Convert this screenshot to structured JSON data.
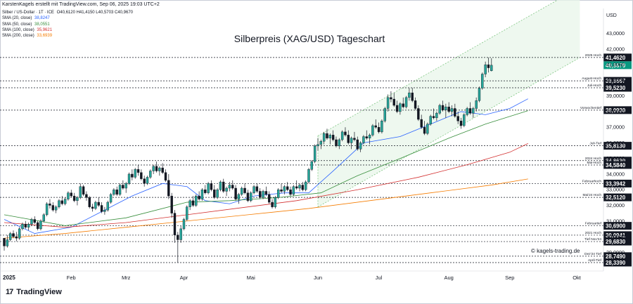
{
  "credit": "KarstenKagels erstellt mit TradingView.com, Sep 06, 2025 19:03 UTC+2",
  "legend": {
    "instrument": "Silber / US-Dollar · 1T · ICE",
    "ohlc": "O40,6120 H41,4150 L40,5703 C40,9670",
    "sma": [
      {
        "label": "SMA (20, close)",
        "value": "38,8247",
        "color": "#2962ff"
      },
      {
        "label": "SMA (50, close)",
        "value": "38,0551",
        "color": "#388e3c"
      },
      {
        "label": "SMA (100, close)",
        "value": "35,9621",
        "color": "#d32f2f"
      },
      {
        "label": "SMA (200, close)",
        "value": "33,6939",
        "color": "#f57c00"
      }
    ]
  },
  "year_label": "2025",
  "brand": "TradingView",
  "watermark": "© kagels-trading.de",
  "chart_data": {
    "type": "candlestick",
    "title": "Silberpreis (XAG/USD) Tageschart",
    "currency": "USD",
    "ylim": [
      27.8,
      44.6
    ],
    "y_ticks": [
      29,
      30,
      31,
      32,
      33,
      34,
      35,
      36,
      37,
      38,
      39,
      40,
      41,
      42,
      43
    ],
    "y_tick_labels": [
      "29,0000",
      "30,0000",
      "31,0000",
      "32,0000",
      "33,0000",
      "34,0000",
      "35,0000",
      "36,0000",
      "37,0000",
      "38,0000",
      "39,0000",
      "40,0000",
      "41,0000",
      "42,0000",
      "43,0000"
    ],
    "x_labels": [
      "Feb",
      "Mrz",
      "Apr",
      "Mai",
      "Jun",
      "Jul",
      "Aug",
      "Sep",
      "Okt"
    ],
    "x_label_days": [
      22,
      40,
      59,
      81,
      103,
      123,
      146,
      166,
      188
    ],
    "levels": [
      {
        "name": "2025 Hoch",
        "value": 41.462,
        "label": "41,4620",
        "filled": false
      },
      {
        "name": "",
        "value": 40.967,
        "label": "40,9670",
        "filled": true,
        "color": "#089981"
      },
      {
        "name": "August-Hoch",
        "value": 39.9667,
        "label": "39,9667",
        "filled": false
      },
      {
        "name": "Juli-Hoch",
        "value": 39.523,
        "label": "39,5230",
        "filled": false
      },
      {
        "name": "Vorwochentief",
        "value": 38.093,
        "label": "38,0930",
        "filled": false
      },
      {
        "name": "Juli-Tief",
        "value": 35.813,
        "label": "35,8130",
        "filled": false
      },
      {
        "name": "2024 Hoch",
        "value": 34.863,
        "label": "34,8630",
        "filled": false
      },
      {
        "name": "Mai-Hoch",
        "value": 34.584,
        "label": "34,5840",
        "filled": false
      },
      {
        "name": "Februarhoch",
        "value": 33.3942,
        "label": "33,3942",
        "filled": false
      },
      {
        "name": "Mai'24 Hoch",
        "value": 32.512,
        "label": "32,5120",
        "filled": false
      },
      {
        "name": "Februartief",
        "value": 30.69,
        "label": "30,6900",
        "filled": false
      },
      {
        "name": "2021 Hoch",
        "value": 30.0941,
        "label": "30,0941",
        "filled": false
      },
      {
        "name": "Tief Nov'24",
        "value": 29.683,
        "label": "29,6830",
        "filled": false
      },
      {
        "name": "Dez'24 Tief",
        "value": 28.749,
        "label": "28,7490",
        "filled": false
      },
      {
        "name": "April-Tief",
        "value": 28.339,
        "label": "28,3390",
        "filled": false
      }
    ],
    "channel": {
      "upper": [
        [
          103,
          36.45
        ],
        [
          175,
          44.4
        ]
      ],
      "lower": [
        [
          103,
          31.9
        ],
        [
          175,
          39.9
        ]
      ],
      "x_end": 189
    },
    "candles_ohlc": [
      [
        29.9,
        29.8,
        29.1,
        29.4
      ],
      [
        29.4,
        30.1,
        29.3,
        29.8
      ],
      [
        29.8,
        30.3,
        29.7,
        30.2
      ],
      [
        30.2,
        30.4,
        29.9,
        30.0
      ],
      [
        30.0,
        30.3,
        29.7,
        29.9
      ],
      [
        29.9,
        30.6,
        29.8,
        30.5
      ],
      [
        30.5,
        30.9,
        30.4,
        30.8
      ],
      [
        30.8,
        31.0,
        30.5,
        30.6
      ],
      [
        30.6,
        30.9,
        30.4,
        30.8
      ],
      [
        30.8,
        31.2,
        30.7,
        31.1
      ],
      [
        31.1,
        31.3,
        30.8,
        30.9
      ],
      [
        30.9,
        31.0,
        30.4,
        30.5
      ],
      [
        30.5,
        31.1,
        30.4,
        31.0
      ],
      [
        31.0,
        31.5,
        30.9,
        31.4
      ],
      [
        31.4,
        32.2,
        31.3,
        32.1
      ],
      [
        32.1,
        32.4,
        31.8,
        32.0
      ],
      [
        32.0,
        32.2,
        31.6,
        31.7
      ],
      [
        31.7,
        32.0,
        31.5,
        31.9
      ],
      [
        31.9,
        32.4,
        31.8,
        32.3
      ],
      [
        32.3,
        32.6,
        32.0,
        32.1
      ],
      [
        32.1,
        32.5,
        32.0,
        32.4
      ],
      [
        32.4,
        32.9,
        32.3,
        32.8
      ],
      [
        32.8,
        33.0,
        32.5,
        32.6
      ],
      [
        32.6,
        32.8,
        32.2,
        32.3
      ],
      [
        32.3,
        32.6,
        32.0,
        32.5
      ],
      [
        32.5,
        33.4,
        32.4,
        33.2
      ],
      [
        33.2,
        33.3,
        32.6,
        32.7
      ],
      [
        32.7,
        32.9,
        32.3,
        32.5
      ],
      [
        32.5,
        32.6,
        31.8,
        31.9
      ],
      [
        31.9,
        32.1,
        31.6,
        31.8
      ],
      [
        31.8,
        32.3,
        31.7,
        32.2
      ],
      [
        32.2,
        32.5,
        31.9,
        32.0
      ],
      [
        32.0,
        32.2,
        31.5,
        31.6
      ],
      [
        31.6,
        31.9,
        31.4,
        31.7
      ],
      [
        31.7,
        32.3,
        31.6,
        32.2
      ],
      [
        32.2,
        32.8,
        32.1,
        32.7
      ],
      [
        32.7,
        33.1,
        32.6,
        33.0
      ],
      [
        33.0,
        33.2,
        32.6,
        32.7
      ],
      [
        32.7,
        33.4,
        32.6,
        33.3
      ],
      [
        33.3,
        33.6,
        33.0,
        33.1
      ],
      [
        33.1,
        33.5,
        32.8,
        33.4
      ],
      [
        33.4,
        34.1,
        33.3,
        34.0
      ],
      [
        34.0,
        34.3,
        33.6,
        33.8
      ],
      [
        33.8,
        34.4,
        33.7,
        34.3
      ],
      [
        34.3,
        34.6,
        33.9,
        34.1
      ],
      [
        34.1,
        34.3,
        33.6,
        33.7
      ],
      [
        33.7,
        33.9,
        33.2,
        33.4
      ],
      [
        33.4,
        33.9,
        33.3,
        33.8
      ],
      [
        33.8,
        34.3,
        33.7,
        34.2
      ],
      [
        34.2,
        34.6,
        34.0,
        34.5
      ],
      [
        34.5,
        34.8,
        34.1,
        34.2
      ],
      [
        34.2,
        34.5,
        33.9,
        34.4
      ],
      [
        34.4,
        34.7,
        34.0,
        34.1
      ],
      [
        34.1,
        34.3,
        33.5,
        33.6
      ],
      [
        33.6,
        34.0,
        32.4,
        32.6
      ],
      [
        32.6,
        32.8,
        31.2,
        31.5
      ],
      [
        31.5,
        31.7,
        29.6,
        30.1
      ],
      [
        30.1,
        30.3,
        28.34,
        29.8
      ],
      [
        29.8,
        30.7,
        29.6,
        30.5
      ],
      [
        30.5,
        31.2,
        30.4,
        31.1
      ],
      [
        31.1,
        32.0,
        31.0,
        31.9
      ],
      [
        31.9,
        32.4,
        31.7,
        32.3
      ],
      [
        32.3,
        32.6,
        31.9,
        32.0
      ],
      [
        32.0,
        32.7,
        31.9,
        32.6
      ],
      [
        32.6,
        32.9,
        32.3,
        32.4
      ],
      [
        32.4,
        33.1,
        32.3,
        33.0
      ],
      [
        33.0,
        33.3,
        32.7,
        32.8
      ],
      [
        32.8,
        33.5,
        32.7,
        33.4
      ],
      [
        33.4,
        33.6,
        32.9,
        33.0
      ],
      [
        33.0,
        33.3,
        32.4,
        32.5
      ],
      [
        32.5,
        33.1,
        32.4,
        33.0
      ],
      [
        33.0,
        33.6,
        32.9,
        33.5
      ],
      [
        33.5,
        33.7,
        32.8,
        32.9
      ],
      [
        32.9,
        33.2,
        32.6,
        33.1
      ],
      [
        33.1,
        33.5,
        32.9,
        33.3
      ],
      [
        33.3,
        33.6,
        33.0,
        33.1
      ],
      [
        33.1,
        33.3,
        32.3,
        32.4
      ],
      [
        32.4,
        32.8,
        32.1,
        32.7
      ],
      [
        32.7,
        33.2,
        32.6,
        33.1
      ],
      [
        33.1,
        33.4,
        32.7,
        32.8
      ],
      [
        32.8,
        33.0,
        32.2,
        32.3
      ],
      [
        32.3,
        32.9,
        32.2,
        32.8
      ],
      [
        32.8,
        33.3,
        32.7,
        33.2
      ],
      [
        33.2,
        33.4,
        32.8,
        32.9
      ],
      [
        32.9,
        33.1,
        32.4,
        32.5
      ],
      [
        32.5,
        33.0,
        32.4,
        32.9
      ],
      [
        32.9,
        33.2,
        32.6,
        32.7
      ],
      [
        32.7,
        32.9,
        32.1,
        32.2
      ],
      [
        32.2,
        32.4,
        31.8,
        31.9
      ],
      [
        31.9,
        32.6,
        31.8,
        32.5
      ],
      [
        32.5,
        33.1,
        32.4,
        33.0
      ],
      [
        33.0,
        33.4,
        32.8,
        32.9
      ],
      [
        32.9,
        33.3,
        32.7,
        33.2
      ],
      [
        33.2,
        33.5,
        32.9,
        33.0
      ],
      [
        33.0,
        33.2,
        32.6,
        32.7
      ],
      [
        32.7,
        33.3,
        32.6,
        33.2
      ],
      [
        33.2,
        33.6,
        33.0,
        33.1
      ],
      [
        33.1,
        33.4,
        32.9,
        33.3
      ],
      [
        33.3,
        33.5,
        32.9,
        33.0
      ],
      [
        33.0,
        33.6,
        32.9,
        33.5
      ],
      [
        33.5,
        34.4,
        33.4,
        34.3
      ],
      [
        34.3,
        34.9,
        34.2,
        34.8
      ],
      [
        34.8,
        35.9,
        34.7,
        35.8
      ],
      [
        35.8,
        36.3,
        35.5,
        35.9
      ],
      [
        35.9,
        36.2,
        35.6,
        36.1
      ],
      [
        36.1,
        36.7,
        35.9,
        36.6
      ],
      [
        36.6,
        36.9,
        36.2,
        36.3
      ],
      [
        36.3,
        36.6,
        35.9,
        36.5
      ],
      [
        36.5,
        36.8,
        36.1,
        36.2
      ],
      [
        36.2,
        36.4,
        35.7,
        35.8
      ],
      [
        35.8,
        36.3,
        35.6,
        36.2
      ],
      [
        36.2,
        36.8,
        36.1,
        36.7
      ],
      [
        36.7,
        37.0,
        36.4,
        36.5
      ],
      [
        36.5,
        36.8,
        35.9,
        36.0
      ],
      [
        36.0,
        36.4,
        35.6,
        36.3
      ],
      [
        36.3,
        36.7,
        36.1,
        36.2
      ],
      [
        36.2,
        36.4,
        35.5,
        35.6
      ],
      [
        35.6,
        36.1,
        35.4,
        36.0
      ],
      [
        36.0,
        36.5,
        35.9,
        36.4
      ],
      [
        36.4,
        36.8,
        36.2,
        36.3
      ],
      [
        36.3,
        36.6,
        35.9,
        36.5
      ],
      [
        36.5,
        37.2,
        36.4,
        37.1
      ],
      [
        37.1,
        37.5,
        36.9,
        37.0
      ],
      [
        37.0,
        37.3,
        36.6,
        36.7
      ],
      [
        36.7,
        37.5,
        36.6,
        37.4
      ],
      [
        37.4,
        38.3,
        37.3,
        38.2
      ],
      [
        38.2,
        39.1,
        38.0,
        38.9
      ],
      [
        38.9,
        39.3,
        38.6,
        38.8
      ],
      [
        38.8,
        39.2,
        38.3,
        38.4
      ],
      [
        38.4,
        38.7,
        37.9,
        38.0
      ],
      [
        38.0,
        38.6,
        37.8,
        38.5
      ],
      [
        38.5,
        38.9,
        38.2,
        38.3
      ],
      [
        38.3,
        39.0,
        38.2,
        38.9
      ],
      [
        38.9,
        39.5,
        38.7,
        39.2
      ],
      [
        39.2,
        39.52,
        38.6,
        38.7
      ],
      [
        38.7,
        38.9,
        38.1,
        38.2
      ],
      [
        38.2,
        38.4,
        37.4,
        37.5
      ],
      [
        37.5,
        37.8,
        36.9,
        37.0
      ],
      [
        37.0,
        37.4,
        36.5,
        36.6
      ],
      [
        36.6,
        37.3,
        36.5,
        37.2
      ],
      [
        37.2,
        37.8,
        37.1,
        37.7
      ],
      [
        37.7,
        38.2,
        37.5,
        37.6
      ],
      [
        37.6,
        38.0,
        37.4,
        37.9
      ],
      [
        37.9,
        38.5,
        37.8,
        38.4
      ],
      [
        38.4,
        38.7,
        38.0,
        38.1
      ],
      [
        38.1,
        38.5,
        37.6,
        38.3
      ],
      [
        38.3,
        38.6,
        37.9,
        38.0
      ],
      [
        38.0,
        38.4,
        37.7,
        38.2
      ],
      [
        38.2,
        38.5,
        37.6,
        37.7
      ],
      [
        37.7,
        38.0,
        37.2,
        37.4
      ],
      [
        37.4,
        37.6,
        36.9,
        37.1
      ],
      [
        37.1,
        37.9,
        37.0,
        37.8
      ],
      [
        37.8,
        38.3,
        37.7,
        38.2
      ],
      [
        38.2,
        38.6,
        37.8,
        37.9
      ],
      [
        37.9,
        38.3,
        37.6,
        38.2
      ],
      [
        38.2,
        38.9,
        38.0,
        38.7
      ],
      [
        38.7,
        39.6,
        38.6,
        39.5
      ],
      [
        39.5,
        40.5,
        39.4,
        40.4
      ],
      [
        40.4,
        41.2,
        40.2,
        41.0
      ],
      [
        41.0,
        41.462,
        40.5,
        40.8
      ],
      [
        40.612,
        41.415,
        40.5703,
        40.967
      ]
    ],
    "sma_series": [
      {
        "name": "SMA (20, close)",
        "color": "#2962ff",
        "points": [
          [
            0,
            31.1
          ],
          [
            10,
            30.2
          ],
          [
            22,
            30.6
          ],
          [
            32,
            31.6
          ],
          [
            42,
            32.6
          ],
          [
            52,
            33.4
          ],
          [
            60,
            33.2
          ],
          [
            66,
            32.3
          ],
          [
            74,
            32.1
          ],
          [
            82,
            32.6
          ],
          [
            92,
            32.8
          ],
          [
            100,
            32.8
          ],
          [
            108,
            34.2
          ],
          [
            118,
            36.0
          ],
          [
            130,
            36.4
          ],
          [
            140,
            37.2
          ],
          [
            150,
            38.0
          ],
          [
            158,
            37.8
          ],
          [
            166,
            38.2
          ],
          [
            172,
            38.82
          ]
        ]
      },
      {
        "name": "SMA (50, close)",
        "color": "#388e3c",
        "points": [
          [
            0,
            31.4
          ],
          [
            20,
            30.7
          ],
          [
            40,
            31.2
          ],
          [
            60,
            32.2
          ],
          [
            74,
            32.3
          ],
          [
            90,
            32.5
          ],
          [
            104,
            32.8
          ],
          [
            116,
            33.9
          ],
          [
            130,
            35.0
          ],
          [
            146,
            36.3
          ],
          [
            158,
            37.2
          ],
          [
            172,
            38.06
          ]
        ]
      },
      {
        "name": "SMA (100, close)",
        "color": "#d32f2f",
        "points": [
          [
            0,
            30.9
          ],
          [
            20,
            30.6
          ],
          [
            40,
            30.9
          ],
          [
            60,
            31.4
          ],
          [
            76,
            31.8
          ],
          [
            96,
            32.3
          ],
          [
            116,
            33.0
          ],
          [
            136,
            33.8
          ],
          [
            152,
            34.6
          ],
          [
            166,
            35.4
          ],
          [
            172,
            35.96
          ]
        ]
      },
      {
        "name": "SMA (200, close)",
        "color": "#f57c00",
        "points": [
          [
            0,
            29.9
          ],
          [
            20,
            30.2
          ],
          [
            40,
            30.6
          ],
          [
            60,
            31.0
          ],
          [
            80,
            31.4
          ],
          [
            100,
            31.8
          ],
          [
            120,
            32.3
          ],
          [
            140,
            32.8
          ],
          [
            160,
            33.3
          ],
          [
            172,
            33.69
          ]
        ]
      }
    ]
  }
}
